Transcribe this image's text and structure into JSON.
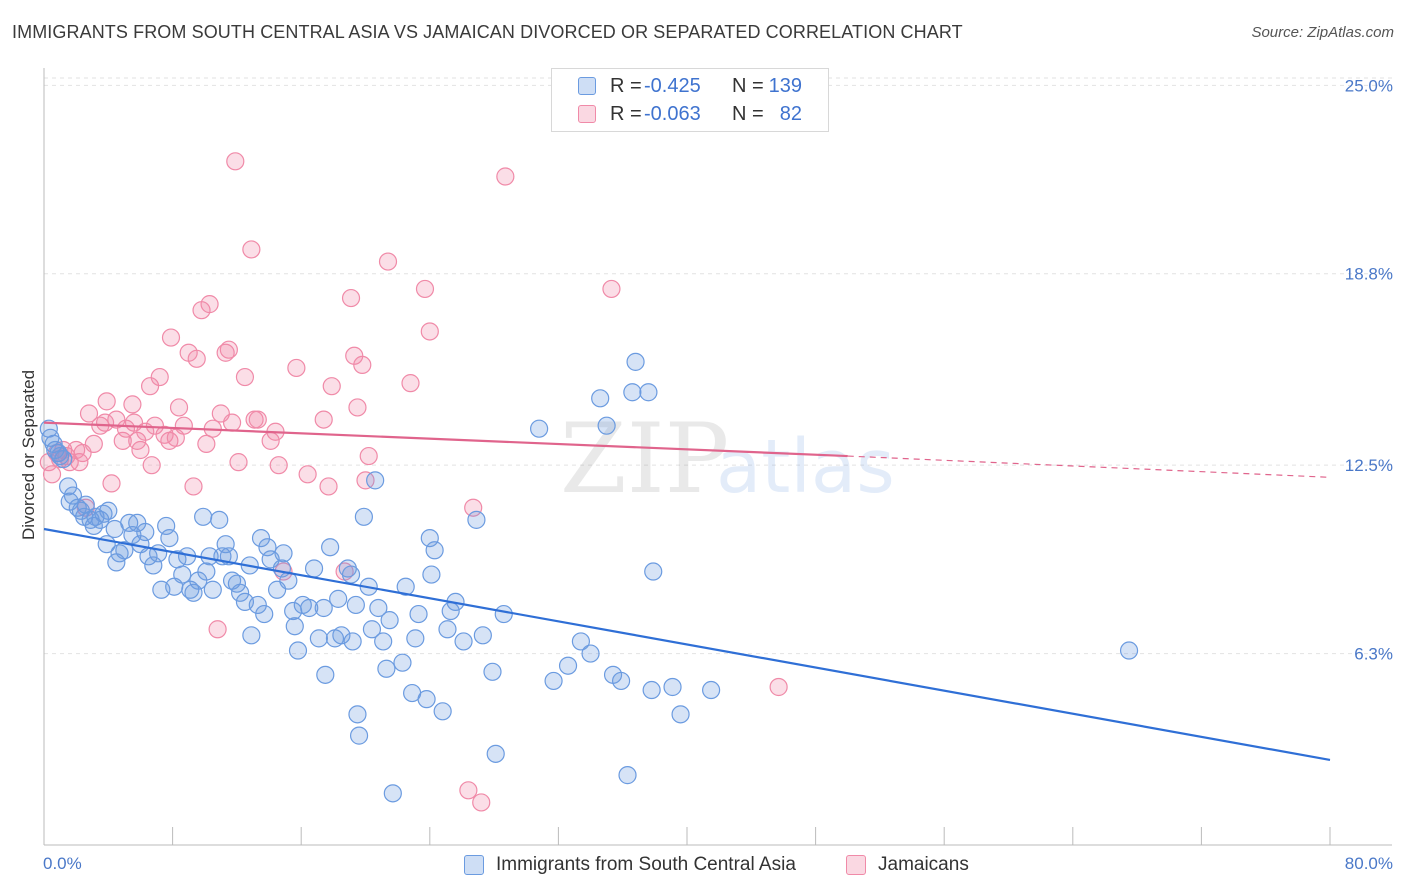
{
  "title": "IMMIGRANTS FROM SOUTH CENTRAL ASIA VS JAMAICAN DIVORCED OR SEPARATED CORRELATION CHART",
  "source": "Source: ZipAtlas.com",
  "watermark": {
    "zip": "ZIP",
    "atlas": "atlas"
  },
  "legend": {
    "rows": [
      {
        "r_label": "R =",
        "r_value": "-0.425",
        "n_label": "N =",
        "n_value": "139",
        "color": "#6b9be0"
      },
      {
        "r_label": "R =",
        "r_value": "-0.063",
        "n_label": "N =",
        "n_value": "82",
        "color": "#f08aa8"
      }
    ]
  },
  "bottom_legend": {
    "series1": "Immigrants from South Central Asia",
    "series2": "Jamaicans"
  },
  "chart_data": {
    "type": "scatter",
    "title": "IMMIGRANTS FROM SOUTH CENTRAL ASIA VS JAMAICAN DIVORCED OR SEPARATED CORRELATION CHART",
    "xlabel": "",
    "ylabel": "Divorced or Separated",
    "xlim": [
      0,
      80
    ],
    "ylim": [
      0,
      25.9
    ],
    "x_tick_labels": [
      "0.0%",
      "80.0%"
    ],
    "y_tick_labels": [
      {
        "value": 25.0,
        "label": "25.0%"
      },
      {
        "value": 18.8,
        "label": "18.8%"
      },
      {
        "value": 12.5,
        "label": "12.5%"
      },
      {
        "value": 6.3,
        "label": "6.3%"
      }
    ],
    "series": [
      {
        "name": "Immigrants from South Central Asia",
        "color": "#6b9be0",
        "trend": {
          "x0": 0,
          "y0": 10.4,
          "x1": 80,
          "y1": 2.8
        },
        "points": [
          [
            0.3,
            13.7
          ],
          [
            0.4,
            13.4
          ],
          [
            0.6,
            13.2
          ],
          [
            0.7,
            13.0
          ],
          [
            0.9,
            12.9
          ],
          [
            1.0,
            12.8
          ],
          [
            1.2,
            12.7
          ],
          [
            1.5,
            11.8
          ],
          [
            1.6,
            11.3
          ],
          [
            1.8,
            11.5
          ],
          [
            2.1,
            11.1
          ],
          [
            2.3,
            11.0
          ],
          [
            2.5,
            10.8
          ],
          [
            2.6,
            11.2
          ],
          [
            2.9,
            10.7
          ],
          [
            3.1,
            10.5
          ],
          [
            3.2,
            10.8
          ],
          [
            3.5,
            10.7
          ],
          [
            3.7,
            10.9
          ],
          [
            4.0,
            11.0
          ],
          [
            3.9,
            9.9
          ],
          [
            4.4,
            10.4
          ],
          [
            4.5,
            9.3
          ],
          [
            4.7,
            9.6
          ],
          [
            5.0,
            9.7
          ],
          [
            5.3,
            10.6
          ],
          [
            5.5,
            10.2
          ],
          [
            5.8,
            10.6
          ],
          [
            6.0,
            9.9
          ],
          [
            6.3,
            10.3
          ],
          [
            6.5,
            9.5
          ],
          [
            6.8,
            9.2
          ],
          [
            7.1,
            9.6
          ],
          [
            7.3,
            8.4
          ],
          [
            7.6,
            10.5
          ],
          [
            7.8,
            10.1
          ],
          [
            8.1,
            8.5
          ],
          [
            8.3,
            9.4
          ],
          [
            8.6,
            8.9
          ],
          [
            8.9,
            9.5
          ],
          [
            9.1,
            8.4
          ],
          [
            9.3,
            8.3
          ],
          [
            9.6,
            8.7
          ],
          [
            9.9,
            10.8
          ],
          [
            10.1,
            9.0
          ],
          [
            10.3,
            9.5
          ],
          [
            10.5,
            8.4
          ],
          [
            10.9,
            10.7
          ],
          [
            11.1,
            9.5
          ],
          [
            11.3,
            9.9
          ],
          [
            11.5,
            9.5
          ],
          [
            11.7,
            8.7
          ],
          [
            12.0,
            8.6
          ],
          [
            12.2,
            8.3
          ],
          [
            12.5,
            8.0
          ],
          [
            12.8,
            9.2
          ],
          [
            12.9,
            6.9
          ],
          [
            13.3,
            7.9
          ],
          [
            13.5,
            10.1
          ],
          [
            13.7,
            7.6
          ],
          [
            13.9,
            9.8
          ],
          [
            14.1,
            9.4
          ],
          [
            14.5,
            8.4
          ],
          [
            14.8,
            9.1
          ],
          [
            14.9,
            9.6
          ],
          [
            15.2,
            8.7
          ],
          [
            15.5,
            7.7
          ],
          [
            15.6,
            7.2
          ],
          [
            15.8,
            6.4
          ],
          [
            16.1,
            7.9
          ],
          [
            16.5,
            7.8
          ],
          [
            16.8,
            9.1
          ],
          [
            17.1,
            6.8
          ],
          [
            17.4,
            7.8
          ],
          [
            17.5,
            5.6
          ],
          [
            17.8,
            9.8
          ],
          [
            18.1,
            6.8
          ],
          [
            18.3,
            8.1
          ],
          [
            18.5,
            6.9
          ],
          [
            18.9,
            9.1
          ],
          [
            19.1,
            8.9
          ],
          [
            19.2,
            6.7
          ],
          [
            19.4,
            7.9
          ],
          [
            19.5,
            4.3
          ],
          [
            19.6,
            3.6
          ],
          [
            19.9,
            10.8
          ],
          [
            20.2,
            8.5
          ],
          [
            20.4,
            7.1
          ],
          [
            20.6,
            12.0
          ],
          [
            20.8,
            7.8
          ],
          [
            21.1,
            6.7
          ],
          [
            21.3,
            5.8
          ],
          [
            21.5,
            7.4
          ],
          [
            21.7,
            1.7
          ],
          [
            22.3,
            6.0
          ],
          [
            22.5,
            8.5
          ],
          [
            22.9,
            5.0
          ],
          [
            23.1,
            6.8
          ],
          [
            23.3,
            7.6
          ],
          [
            23.8,
            4.8
          ],
          [
            24.0,
            10.1
          ],
          [
            24.1,
            8.9
          ],
          [
            24.3,
            9.7
          ],
          [
            24.8,
            4.4
          ],
          [
            25.1,
            7.1
          ],
          [
            25.3,
            7.7
          ],
          [
            25.6,
            8.0
          ],
          [
            26.1,
            6.7
          ],
          [
            26.9,
            10.7
          ],
          [
            27.3,
            6.9
          ],
          [
            27.9,
            5.7
          ],
          [
            28.1,
            3.0
          ],
          [
            28.6,
            7.6
          ],
          [
            30.8,
            13.7
          ],
          [
            31.7,
            5.4
          ],
          [
            32.6,
            5.9
          ],
          [
            33.4,
            6.7
          ],
          [
            34.0,
            6.3
          ],
          [
            34.6,
            14.7
          ],
          [
            35.0,
            13.8
          ],
          [
            35.4,
            5.6
          ],
          [
            35.9,
            5.4
          ],
          [
            36.3,
            2.3
          ],
          [
            36.6,
            14.9
          ],
          [
            36.8,
            15.9
          ],
          [
            37.6,
            14.9
          ],
          [
            37.8,
            5.1
          ],
          [
            37.9,
            9.0
          ],
          [
            39.1,
            5.2
          ],
          [
            39.6,
            4.3
          ],
          [
            41.5,
            5.1
          ],
          [
            67.5,
            6.4
          ]
        ]
      },
      {
        "name": "Jamaicans",
        "color": "#f08aa8",
        "trend": {
          "x0": 0,
          "y0": 13.9,
          "x1": 50,
          "y1": 12.8,
          "dash_to": {
            "x": 80,
            "y": 12.1
          }
        },
        "points": [
          [
            0.3,
            12.6
          ],
          [
            0.5,
            12.2
          ],
          [
            0.8,
            12.9
          ],
          [
            1.0,
            12.7
          ],
          [
            1.2,
            13.0
          ],
          [
            1.4,
            12.8
          ],
          [
            1.6,
            12.6
          ],
          [
            2.0,
            13.0
          ],
          [
            2.2,
            12.6
          ],
          [
            2.4,
            12.9
          ],
          [
            2.6,
            11.1
          ],
          [
            2.8,
            14.2
          ],
          [
            3.1,
            13.2
          ],
          [
            3.5,
            13.8
          ],
          [
            3.8,
            13.9
          ],
          [
            3.9,
            14.6
          ],
          [
            4.2,
            11.9
          ],
          [
            4.5,
            14.0
          ],
          [
            4.9,
            13.3
          ],
          [
            5.1,
            13.7
          ],
          [
            5.5,
            14.5
          ],
          [
            5.6,
            13.9
          ],
          [
            5.8,
            13.3
          ],
          [
            6.0,
            13.0
          ],
          [
            6.3,
            13.6
          ],
          [
            6.6,
            15.1
          ],
          [
            6.7,
            12.5
          ],
          [
            6.9,
            13.8
          ],
          [
            7.2,
            15.4
          ],
          [
            7.5,
            13.5
          ],
          [
            7.8,
            13.3
          ],
          [
            7.9,
            16.7
          ],
          [
            8.2,
            13.4
          ],
          [
            8.4,
            14.4
          ],
          [
            8.7,
            13.8
          ],
          [
            9.0,
            16.2
          ],
          [
            9.3,
            11.8
          ],
          [
            9.5,
            16.0
          ],
          [
            9.8,
            17.6
          ],
          [
            10.1,
            13.2
          ],
          [
            10.3,
            17.8
          ],
          [
            10.5,
            13.7
          ],
          [
            10.8,
            7.1
          ],
          [
            11.0,
            14.2
          ],
          [
            11.3,
            16.2
          ],
          [
            11.5,
            16.3
          ],
          [
            11.7,
            13.9
          ],
          [
            11.9,
            22.5
          ],
          [
            12.1,
            12.6
          ],
          [
            12.5,
            15.4
          ],
          [
            12.9,
            19.6
          ],
          [
            13.1,
            14.0
          ],
          [
            13.3,
            14.0
          ],
          [
            14.1,
            13.3
          ],
          [
            14.4,
            13.6
          ],
          [
            14.6,
            12.5
          ],
          [
            14.9,
            9.0
          ],
          [
            15.7,
            15.7
          ],
          [
            16.4,
            12.2
          ],
          [
            17.4,
            14.0
          ],
          [
            17.7,
            11.8
          ],
          [
            17.9,
            15.1
          ],
          [
            18.7,
            9.0
          ],
          [
            19.1,
            18.0
          ],
          [
            19.3,
            16.1
          ],
          [
            19.5,
            14.4
          ],
          [
            19.8,
            15.8
          ],
          [
            20.0,
            12.0
          ],
          [
            20.2,
            12.8
          ],
          [
            21.4,
            19.2
          ],
          [
            22.8,
            15.2
          ],
          [
            23.7,
            18.3
          ],
          [
            24.0,
            16.9
          ],
          [
            26.4,
            1.8
          ],
          [
            26.7,
            11.1
          ],
          [
            27.2,
            1.4
          ],
          [
            28.7,
            22.0
          ],
          [
            35.3,
            18.3
          ],
          [
            45.7,
            5.2
          ]
        ]
      }
    ]
  }
}
